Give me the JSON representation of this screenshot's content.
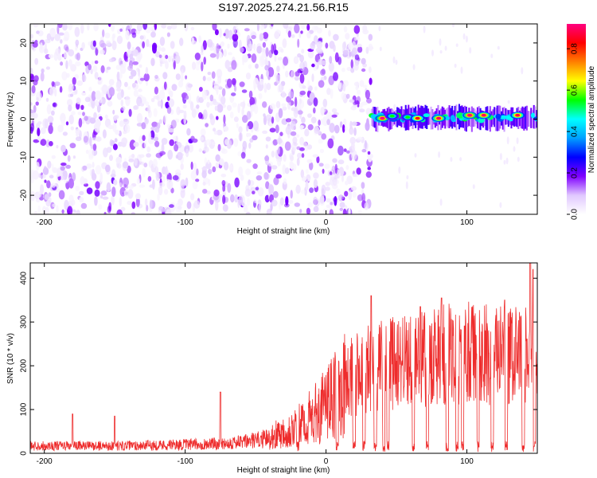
{
  "title": "S197.2025.274.21.56.R15",
  "chart_data": [
    {
      "type": "heatmap",
      "panel": "spectrogram",
      "xlabel": "Height of straight line (km)",
      "ylabel": "Frequency (Hz)",
      "xlim": [
        -210,
        150
      ],
      "ylim": [
        -25,
        25
      ],
      "xticks": [
        -200,
        -100,
        0,
        100
      ],
      "yticks": [
        -20,
        -10,
        0,
        10,
        20
      ],
      "colorbar": {
        "label": "Normalized spectral amplitude",
        "range": [
          0,
          0.92
        ],
        "ticks": [
          0.0,
          0.2,
          0.4,
          0.6,
          0.8
        ],
        "colors": [
          "#ffffff",
          "#e0c8ff",
          "#8000ff",
          "#0000ff",
          "#00a0ff",
          "#00ffff",
          "#00ff00",
          "#ffff00",
          "#ff8000",
          "#ff0000",
          "#ff0080"
        ]
      },
      "noise_region": {
        "x_range": [
          -210,
          32
        ],
        "level": [
          0.02,
          0.2
        ]
      },
      "signal_region": {
        "x_range": [
          32,
          150
        ],
        "freq_center_hz": 0.3,
        "freq_halfwidth_hz": 2.0
      },
      "hotspots": [
        {
          "x": 40,
          "f": 0.2,
          "amp": 0.92
        },
        {
          "x": 47,
          "f": 0.8,
          "amp": 0.55
        },
        {
          "x": 58,
          "f": 0.5,
          "amp": 0.55
        },
        {
          "x": 65,
          "f": 0.2,
          "amp": 0.85
        },
        {
          "x": 80,
          "f": 0.2,
          "amp": 0.9
        },
        {
          "x": 102,
          "f": 1.0,
          "amp": 0.92
        },
        {
          "x": 112,
          "f": 1.0,
          "amp": 0.9
        },
        {
          "x": 136,
          "f": 1.0,
          "amp": 0.88
        }
      ]
    },
    {
      "type": "line",
      "panel": "snr",
      "xlabel": "Height of straight line (km)",
      "ylabel": "SNR (10 * v/v)",
      "xlim": [
        -210,
        150
      ],
      "ylim": [
        0,
        435
      ],
      "xticks": [
        -200,
        -100,
        0,
        100
      ],
      "yticks": [
        0,
        100,
        200,
        300,
        400
      ],
      "color": "#ee2c2c",
      "trend": [
        {
          "x": -210,
          "y": 20
        },
        {
          "x": -180,
          "y": 20
        },
        {
          "x": -150,
          "y": 20
        },
        {
          "x": -120,
          "y": 22
        },
        {
          "x": -90,
          "y": 24
        },
        {
          "x": -60,
          "y": 30
        },
        {
          "x": -40,
          "y": 40
        },
        {
          "x": -20,
          "y": 65
        },
        {
          "x": -5,
          "y": 100
        },
        {
          "x": 10,
          "y": 150
        },
        {
          "x": 25,
          "y": 200
        },
        {
          "x": 40,
          "y": 210
        },
        {
          "x": 60,
          "y": 230
        },
        {
          "x": 80,
          "y": 235
        },
        {
          "x": 100,
          "y": 240
        },
        {
          "x": 120,
          "y": 235
        },
        {
          "x": 140,
          "y": 230
        },
        {
          "x": 150,
          "y": 230
        }
      ],
      "spikes": [
        {
          "x": -180,
          "y": 90
        },
        {
          "x": -150,
          "y": 85
        },
        {
          "x": -75,
          "y": 140
        },
        {
          "x": 32,
          "y": 360
        },
        {
          "x": 67,
          "y": 335
        },
        {
          "x": 82,
          "y": 355
        },
        {
          "x": 127,
          "y": 350
        },
        {
          "x": 145,
          "y": 435
        },
        {
          "x": 147,
          "y": 420
        }
      ],
      "dropouts_x": [
        -20,
        8,
        20,
        27,
        35,
        41,
        44,
        62,
        72,
        86,
        93,
        97,
        108,
        118,
        128,
        140,
        148
      ]
    }
  ]
}
